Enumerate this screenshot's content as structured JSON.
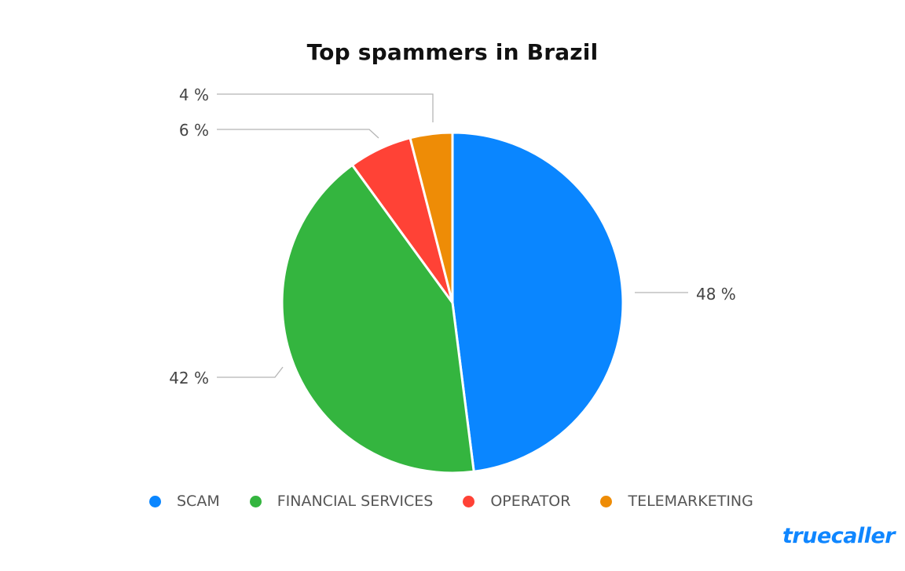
{
  "chart_data": {
    "type": "pie",
    "title": "Top spammers in Brazil",
    "categories": [
      "SCAM",
      "FINANCIAL SERVICES",
      "OPERATOR",
      "TELEMARKETING"
    ],
    "values": [
      48,
      42,
      6,
      4
    ],
    "labels": [
      "48 %",
      "42 %",
      "6 %",
      "4 %"
    ],
    "colors": [
      "#0a86ff",
      "#34b53f",
      "#ff4236",
      "#ee8c06"
    ],
    "start_angle_deg": 0,
    "direction": "clockwise",
    "legend_position": "bottom"
  },
  "header": {
    "title": "Top spammers in Brazil"
  },
  "legend": {
    "items": [
      {
        "label": "SCAM",
        "color": "#0a86ff"
      },
      {
        "label": "FINANCIAL SERVICES",
        "color": "#34b53f"
      },
      {
        "label": "OPERATOR",
        "color": "#ff4236"
      },
      {
        "label": "TELEMARKETING",
        "color": "#ee8c06"
      }
    ]
  },
  "brand": {
    "logo_text": "truecaller",
    "color": "#0f86ff"
  }
}
